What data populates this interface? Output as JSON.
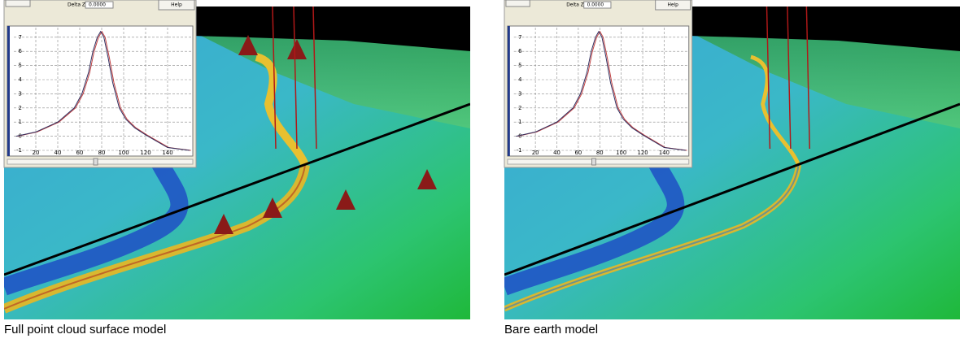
{
  "panels": [
    {
      "caption": "Full point cloud surface model",
      "delta_label": "Delta Z",
      "delta_value": "0.0000",
      "help": "Help",
      "yticks": [
        7,
        6,
        5,
        4,
        3,
        2,
        1,
        0,
        -1
      ],
      "xticks": [
        20,
        40,
        60,
        80,
        100,
        120,
        140
      ],
      "profile": {
        "x": [
          2,
          20,
          40,
          55,
          62,
          68,
          72,
          76,
          79,
          82,
          86,
          90,
          96,
          102,
          110,
          120,
          140,
          160
        ],
        "y": [
          0,
          0.3,
          1,
          2,
          3,
          4.5,
          6,
          7,
          7.4,
          7,
          5.5,
          3.8,
          2,
          1.2,
          0.6,
          0.1,
          -0.8,
          -1
        ]
      }
    },
    {
      "caption": "Bare earth model",
      "delta_label": "Delta Z",
      "delta_value": "0.0000",
      "help": "Help",
      "yticks": [
        7,
        6,
        5,
        4,
        3,
        2,
        1,
        0,
        -1
      ],
      "xticks": [
        20,
        40,
        60,
        80,
        100,
        120,
        140
      ],
      "profile": {
        "x": [
          2,
          20,
          40,
          55,
          62,
          68,
          72,
          76,
          79,
          82,
          86,
          90,
          96,
          102,
          110,
          120,
          140,
          160
        ],
        "y": [
          0,
          0.3,
          1,
          2,
          3,
          4.5,
          6,
          7,
          7.4,
          7,
          5.5,
          3.8,
          2,
          1.2,
          0.6,
          0.1,
          -0.8,
          -1
        ]
      }
    }
  ]
}
